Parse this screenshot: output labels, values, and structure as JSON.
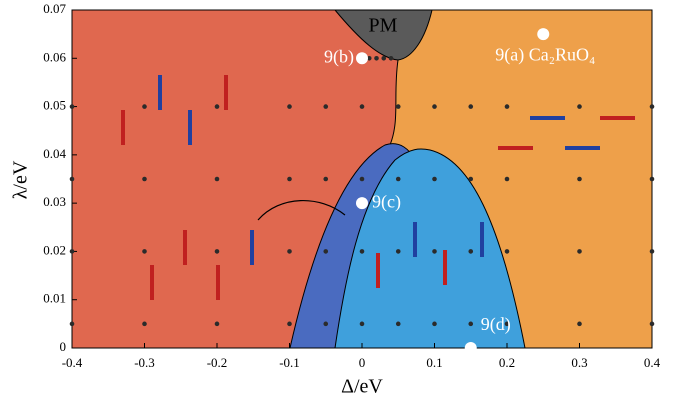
{
  "chart_data": {
    "type": "scatter",
    "xlabel": "Δ/eV",
    "ylabel": "λ/eV",
    "region_label": "PM",
    "xlim": [
      -0.4,
      0.4
    ],
    "ylim": [
      0,
      0.07
    ],
    "xticks": [
      -0.4,
      -0.3,
      -0.2,
      -0.1,
      0,
      0.1,
      0.2,
      0.3,
      0.4
    ],
    "yticks": [
      0,
      0.01,
      0.02,
      0.03,
      0.04,
      0.05,
      0.06,
      0.07
    ],
    "annotations": [
      {
        "label": "9(a) Ca₂RuO₄",
        "x": 0.25,
        "y": 0.065
      },
      {
        "label": "9(b)",
        "x": 0,
        "y": 0.06
      },
      {
        "label": "9(c)",
        "x": 0,
        "y": 0.03
      },
      {
        "label": "9(d)",
        "x": 0.15,
        "y": 0
      }
    ],
    "series": [
      {
        "color": "#2b2b2b",
        "x": [
          -0.4,
          -0.4,
          -0.4,
          -0.4,
          -0.3,
          -0.3,
          -0.3,
          -0.3,
          -0.2,
          -0.2,
          -0.2,
          -0.2,
          -0.1,
          -0.1,
          -0.1,
          -0.1,
          -0.05,
          -0.05,
          -0.05,
          -0.05,
          0,
          0,
          0,
          0,
          0.05,
          0.05,
          0.05,
          0.05,
          0.1,
          0.1,
          0.1,
          0.1,
          0.15,
          0.15,
          0.15,
          0.15,
          0.2,
          0.2,
          0.2,
          0.2,
          0.3,
          0.3,
          0.3,
          0.3,
          0.4,
          0.4,
          0.4,
          0.4,
          0.01,
          0.02,
          0.03,
          0.04
        ],
        "y": [
          0.005,
          0.02,
          0.035,
          0.05,
          0.005,
          0.02,
          0.035,
          0.05,
          0.005,
          0.02,
          0.035,
          0.05,
          0.005,
          0.02,
          0.035,
          0.05,
          0.005,
          0.02,
          0.035,
          0.05,
          0.005,
          0.02,
          0.035,
          0.05,
          0.005,
          0.02,
          0.035,
          0.05,
          0.005,
          0.02,
          0.035,
          0.05,
          0.005,
          0.02,
          0.035,
          0.05,
          0.005,
          0.02,
          0.035,
          0.05,
          0.005,
          0.02,
          0.035,
          0.05,
          0.005,
          0.02,
          0.035,
          0.05,
          0.06,
          0.06,
          0.06,
          0.06
        ]
      }
    ]
  }
}
